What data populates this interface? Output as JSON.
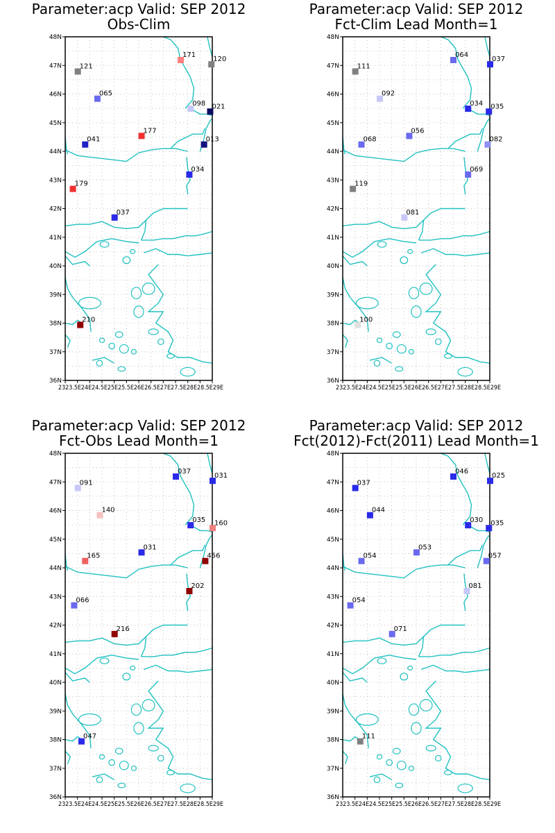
{
  "panels": [
    {
      "title_line1": "Parameter:acp Valid: SEP 2012",
      "title_line2": "Obs-Clim",
      "stations": [
        {
          "lon": 28.95,
          "lat": 47.05,
          "label": "120",
          "color": "#808080"
        },
        {
          "lon": 27.7,
          "lat": 47.2,
          "label": "171",
          "color": "#ff8080"
        },
        {
          "lon": 23.5,
          "lat": 46.8,
          "label": "121",
          "color": "#808080"
        },
        {
          "lon": 24.3,
          "lat": 45.85,
          "label": "065",
          "color": "#6a6aee"
        },
        {
          "lon": 28.1,
          "lat": 45.5,
          "label": "098",
          "color": "#c8c8f8"
        },
        {
          "lon": 28.9,
          "lat": 45.4,
          "label": "021",
          "color": "#0a0a60"
        },
        {
          "lon": 26.1,
          "lat": 44.55,
          "label": "177",
          "color": "#f03030"
        },
        {
          "lon": 23.8,
          "lat": 44.25,
          "label": "041",
          "color": "#2020c8"
        },
        {
          "lon": 28.65,
          "lat": 44.25,
          "label": "013",
          "color": "#101080"
        },
        {
          "lon": 28.05,
          "lat": 43.2,
          "label": "034",
          "color": "#2a2ae8"
        },
        {
          "lon": 23.3,
          "lat": 42.7,
          "label": "179",
          "color": "#f03030"
        },
        {
          "lon": 25.0,
          "lat": 41.7,
          "label": "037",
          "color": "#2a2ae8"
        },
        {
          "lon": 23.6,
          "lat": 37.95,
          "label": "210",
          "color": "#900000"
        }
      ]
    },
    {
      "title_line1": "Parameter:acp Valid: SEP 2012",
      "title_line2": "Fct-Clim Lead Month=1",
      "stations": [
        {
          "lon": 29.0,
          "lat": 47.05,
          "label": "037",
          "color": "#2a2ae8"
        },
        {
          "lon": 27.5,
          "lat": 47.2,
          "label": "064",
          "color": "#6a6aee"
        },
        {
          "lon": 23.5,
          "lat": 46.8,
          "label": "111",
          "color": "#808080"
        },
        {
          "lon": 24.5,
          "lat": 45.85,
          "label": "092",
          "color": "#c8c8f8"
        },
        {
          "lon": 28.1,
          "lat": 45.5,
          "label": "034",
          "color": "#2a2ae8"
        },
        {
          "lon": 28.95,
          "lat": 45.4,
          "label": "035",
          "color": "#2a2ae8"
        },
        {
          "lon": 25.7,
          "lat": 44.55,
          "label": "056",
          "color": "#6a6aee"
        },
        {
          "lon": 23.75,
          "lat": 44.25,
          "label": "068",
          "color": "#6a6aee"
        },
        {
          "lon": 28.9,
          "lat": 44.25,
          "label": "082",
          "color": "#9090f0"
        },
        {
          "lon": 28.1,
          "lat": 43.2,
          "label": "069",
          "color": "#6a6aee"
        },
        {
          "lon": 23.4,
          "lat": 42.7,
          "label": "119",
          "color": "#808080"
        },
        {
          "lon": 25.5,
          "lat": 41.7,
          "label": "081",
          "color": "#c8c8f8"
        },
        {
          "lon": 23.6,
          "lat": 37.95,
          "label": "100",
          "color": "#e0e0e0"
        }
      ]
    },
    {
      "title_line1": "Parameter:acp Valid: SEP 2012",
      "title_line2": "Fct-Obs Lead Month=1",
      "stations": [
        {
          "lon": 29.0,
          "lat": 47.05,
          "label": "031",
          "color": "#2a2ae8"
        },
        {
          "lon": 27.5,
          "lat": 47.2,
          "label": "037",
          "color": "#2a2ae8"
        },
        {
          "lon": 23.5,
          "lat": 46.8,
          "label": "091",
          "color": "#c8c8f8"
        },
        {
          "lon": 24.4,
          "lat": 45.85,
          "label": "140",
          "color": "#f8c0c0"
        },
        {
          "lon": 28.1,
          "lat": 45.5,
          "label": "035",
          "color": "#2a2ae8"
        },
        {
          "lon": 29.0,
          "lat": 45.4,
          "label": "160",
          "color": "#f08080"
        },
        {
          "lon": 26.1,
          "lat": 44.55,
          "label": "031",
          "color": "#2a2ae8"
        },
        {
          "lon": 23.8,
          "lat": 44.25,
          "label": "165",
          "color": "#f06060"
        },
        {
          "lon": 28.7,
          "lat": 44.25,
          "label": "456",
          "color": "#900000"
        },
        {
          "lon": 28.05,
          "lat": 43.2,
          "label": "202",
          "color": "#900000"
        },
        {
          "lon": 23.35,
          "lat": 42.7,
          "label": "066",
          "color": "#6a6aee"
        },
        {
          "lon": 25.0,
          "lat": 41.7,
          "label": "216",
          "color": "#900000"
        },
        {
          "lon": 23.65,
          "lat": 37.95,
          "label": "047",
          "color": "#2a2ae8"
        }
      ]
    },
    {
      "title_line1": "Parameter:acp Valid: SEP 2012",
      "title_line2": "Fct(2012)-Fct(2011) Lead Month=1",
      "stations": [
        {
          "lon": 29.0,
          "lat": 47.05,
          "label": "025",
          "color": "#2a2ae8"
        },
        {
          "lon": 27.5,
          "lat": 47.2,
          "label": "046",
          "color": "#2a2ae8"
        },
        {
          "lon": 23.5,
          "lat": 46.8,
          "label": "037",
          "color": "#2a2ae8"
        },
        {
          "lon": 24.1,
          "lat": 45.85,
          "label": "044",
          "color": "#2a2ae8"
        },
        {
          "lon": 28.1,
          "lat": 45.5,
          "label": "030",
          "color": "#2a2ae8"
        },
        {
          "lon": 28.95,
          "lat": 45.4,
          "label": "035",
          "color": "#2a2ae8"
        },
        {
          "lon": 26.0,
          "lat": 44.55,
          "label": "053",
          "color": "#6a6aee"
        },
        {
          "lon": 23.75,
          "lat": 44.25,
          "label": "054",
          "color": "#6a6aee"
        },
        {
          "lon": 28.85,
          "lat": 44.25,
          "label": "057",
          "color": "#6a6aee"
        },
        {
          "lon": 28.05,
          "lat": 43.2,
          "label": "081",
          "color": "#c8c8f8"
        },
        {
          "lon": 23.3,
          "lat": 42.7,
          "label": "054",
          "color": "#6a6aee"
        },
        {
          "lon": 25.0,
          "lat": 41.7,
          "label": "071",
          "color": "#6a6aee"
        },
        {
          "lon": 23.7,
          "lat": 37.95,
          "label": "111",
          "color": "#808080"
        }
      ]
    }
  ],
  "axes": {
    "lat_labels": [
      "48N",
      "47N",
      "46N",
      "45N",
      "44N",
      "43N",
      "42N",
      "41N",
      "40N",
      "39N",
      "38N",
      "37N",
      "36N"
    ],
    "lon_labels": [
      "23E",
      "23.5E",
      "24E",
      "24.5E",
      "25E",
      "25.5E",
      "26E",
      "26.5E",
      "27E",
      "27.5E",
      "28E",
      "28.5E",
      "29E"
    ],
    "lon_label_text": "2323.5E24E24.5E25E25.5E26E26.5E27E27.5E28E28.5E29E",
    "lon_range": [
      23,
      29
    ],
    "lat_range": [
      36,
      48
    ]
  },
  "colors": {
    "coastline": "#20c0c0",
    "grid": "#bfbfbf",
    "frame": "#000000"
  }
}
